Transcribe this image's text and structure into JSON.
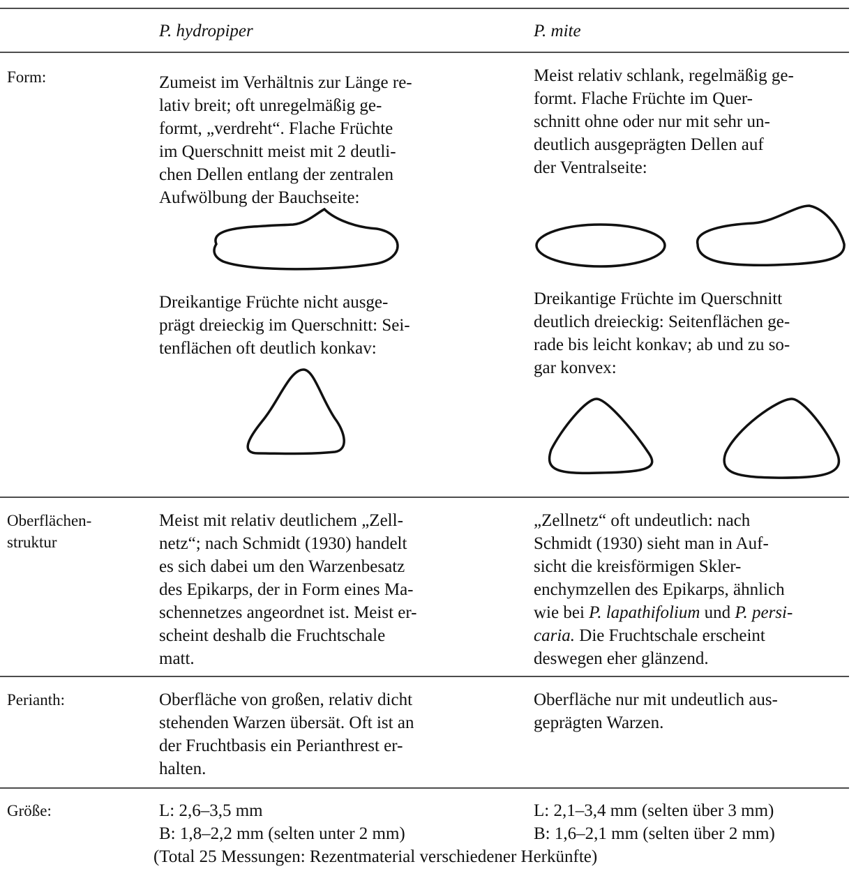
{
  "header": {
    "col1": "P. hydropiper",
    "col2": "P. mite"
  },
  "rows": [
    {
      "label": [
        "Form:"
      ],
      "col1": [
        [
          "Zumeist im Verhältnis zur Länge re-",
          "lativ breit; oft unregelmäßig ge-",
          "formt, „verdreht“. Flache Früchte",
          "im Querschnitt meist mit 2 deutli-",
          "chen Dellen entlang der zentralen",
          "Aufwölbung der Bauchseite:"
        ],
        [
          "Dreikantige Früchte nicht ausge-",
          "prägt dreieckig im Querschnitt: Sei-",
          "tenflächen oft deutlich konkav:"
        ]
      ],
      "col2": [
        [
          "Meist relativ schlank, regelmäßig ge-",
          "formt. Flache Früchte im Quer-",
          "schnitt ohne oder nur mit sehr un-",
          "deutlich ausgeprägten Dellen auf",
          "der Ventralseite:"
        ],
        [
          "Dreikantige Früchte im Querschnitt",
          "deutlich dreieckig: Seitenflächen ge-",
          "rade bis leicht konkav; ab und zu so-",
          "gar konvex:"
        ]
      ]
    },
    {
      "label": [
        "Oberflächen-",
        "struktur"
      ],
      "col1": [
        [
          "Meist mit relativ deutlichem „Zell-",
          "netz“; nach Schmidt (1930) handelt",
          "es sich dabei um den Warzenbesatz",
          "des Epikarps, der in Form eines Ma-",
          "schennetzes angeordnet ist. Meist er-",
          "scheint deshalb die Fruchtschale",
          "matt."
        ]
      ],
      "col2": [
        [
          "„Zellnetz“ oft undeutlich: nach",
          "Schmidt (1930) sieht man in Auf-",
          "sicht die kreisförmigen Skler-",
          "enchymzellen des Epikarps, ähnlich",
          [
            {
              "text": "wie bei "
            },
            {
              "text": "P. lapathifolium",
              "italic": true
            },
            {
              "text": " und "
            },
            {
              "text": "P. persi-",
              "italic": true
            }
          ],
          [
            {
              "text": "caria.",
              "italic": true
            },
            {
              "text": " Die Fruchtschale erscheint"
            }
          ],
          "deswegen eher glänzend."
        ]
      ]
    },
    {
      "label": [
        "Perianth:"
      ],
      "col1": [
        [
          "Oberfläche von großen, relativ dicht",
          "stehenden Warzen übersät. Oft ist an",
          "der Fruchtbasis ein Perianthrest er-",
          "halten."
        ]
      ],
      "col2": [
        [
          "Oberfläche nur mit undeutlich aus-",
          "geprägten Warzen."
        ]
      ]
    },
    {
      "label": [
        "Größe:"
      ],
      "col1": [
        [
          "L: 2,6–3,5 mm",
          "B: 1,8–2,2 mm (selten unter 2 mm)"
        ]
      ],
      "col2": [
        [
          "L: 2,1–3,4 mm (selten über 3 mm)",
          "B: 1,6–2,1 mm (selten über 2 mm)"
        ]
      ],
      "note": "(Total 25 Messungen: Rezentmaterial verschiedener Herkünfte)"
    }
  ]
}
